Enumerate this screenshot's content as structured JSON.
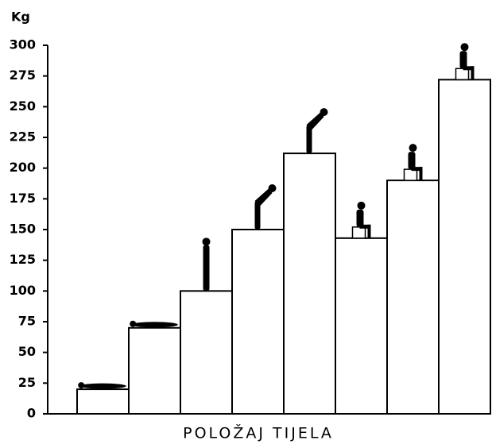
{
  "chart_data": {
    "type": "bar",
    "y_label": "Kg",
    "x_label": "POLOŽAJ TIJELA",
    "categories": [
      null,
      null,
      null,
      null,
      null,
      null,
      null,
      null
    ],
    "values": [
      20,
      70,
      100,
      150,
      212,
      143,
      190,
      272
    ],
    "color": "#ffffff",
    "ylim": [
      0,
      300
    ],
    "yticks": [
      0,
      25,
      50,
      75,
      100,
      125,
      150,
      175,
      200,
      225,
      250,
      275,
      300
    ]
  }
}
